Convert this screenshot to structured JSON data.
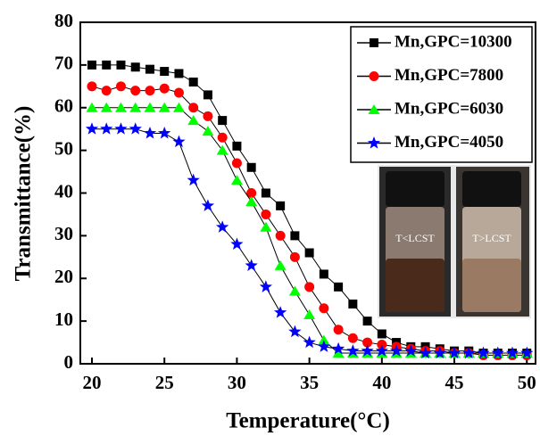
{
  "chart_data": {
    "type": "line",
    "x_label": "Temperature(°C)",
    "y_label": "Transmittance(%)",
    "x": [
      20,
      21,
      22,
      23,
      24,
      25,
      26,
      27,
      28,
      29,
      30,
      31,
      32,
      33,
      34,
      35,
      36,
      37,
      38,
      39,
      40,
      41,
      42,
      43,
      44,
      45,
      46,
      47,
      48,
      49,
      50
    ],
    "xlim": [
      19.2,
      50.6
    ],
    "xticks": [
      20,
      25,
      30,
      35,
      40,
      45,
      50
    ],
    "ylim": [
      0,
      80
    ],
    "yticks": [
      0,
      10,
      20,
      30,
      40,
      50,
      60,
      70,
      80
    ],
    "legend": "upper right",
    "series": [
      {
        "name": "Mn,GPC=10300",
        "color": "#000000",
        "marker": "square",
        "values": [
          70,
          70,
          70,
          69.5,
          69,
          68.5,
          68,
          66,
          63,
          57,
          51,
          46,
          40,
          37,
          30,
          26,
          21,
          18,
          14,
          10,
          7,
          5,
          4,
          4,
          3.5,
          3,
          3,
          2.5,
          2.5,
          2.5,
          2.5
        ]
      },
      {
        "name": "Mn,GPC=7800",
        "color": "#ff0000",
        "marker": "circle",
        "values": [
          65,
          64,
          65,
          64,
          64,
          64.5,
          63.5,
          60,
          58,
          53,
          47,
          40,
          35,
          30,
          25,
          18,
          13,
          8,
          6,
          5,
          4.5,
          4,
          3.5,
          3,
          3,
          2.5,
          2.5,
          2,
          2,
          2,
          2
        ]
      },
      {
        "name": "Mn,GPC=6030",
        "color": "#00ff00",
        "marker": "triangle",
        "values": [
          60,
          60,
          60,
          60,
          60,
          60,
          60,
          57,
          54.5,
          50,
          43,
          38,
          32,
          23,
          17,
          11.5,
          5.5,
          2.5,
          2.5,
          2.5,
          2.5,
          2.5,
          2.5,
          2.5,
          2.5,
          2.5,
          2.5,
          2.5,
          2.5,
          2.5,
          2.5
        ]
      },
      {
        "name": "Mn,GPC=4050",
        "color": "#0000ff",
        "marker": "star",
        "values": [
          55,
          55,
          55,
          55,
          54,
          54,
          52,
          43,
          37,
          32,
          28,
          23,
          18,
          12,
          7.5,
          5,
          4,
          3.5,
          3,
          3,
          3,
          3,
          3,
          2.5,
          2.5,
          2.5,
          2.5,
          2.5,
          2.5,
          2.5,
          2.5
        ]
      }
    ],
    "annotations": [
      "T<LCST",
      "T>LCST"
    ]
  }
}
